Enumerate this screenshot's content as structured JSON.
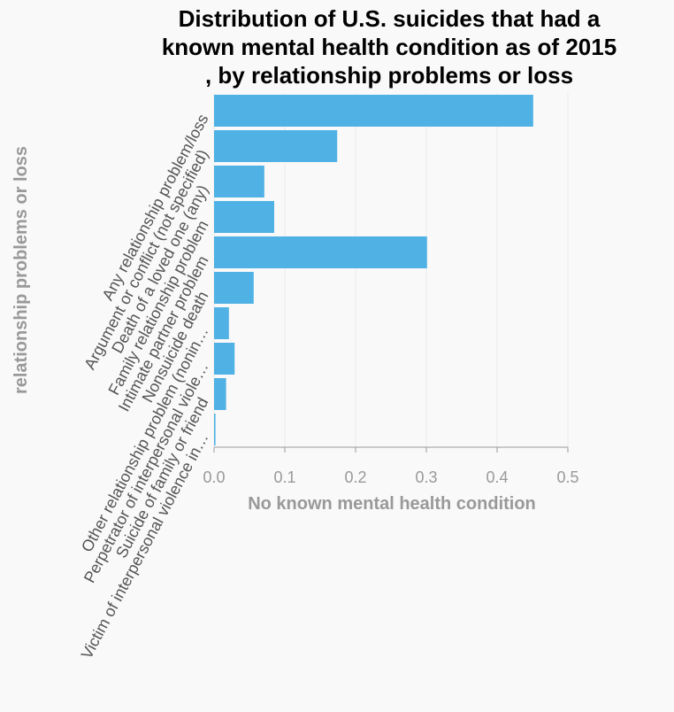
{
  "chart_data": {
    "type": "bar",
    "orientation": "horizontal",
    "title_lines": [
      "Distribution of U.S. suicides that had a",
      "known mental health condition as of 2015",
      ", by relationship problems or loss"
    ],
    "xlabel": "No known mental health condition",
    "ylabel": "relationship problems or loss",
    "xlim": [
      0,
      0.5
    ],
    "x_ticks": [
      "0.0",
      "0.1",
      "0.2",
      "0.3",
      "0.4",
      "0.5"
    ],
    "categories": [
      "Any relationship problem/loss",
      "Argument or conflict (not specified)",
      "Death of a loved one (any)",
      "Family relationship problem",
      "Intimate partner problem",
      "Nonsuicide death",
      "Other relationship problem (nonin…",
      "Perpetrator of interpersonal viole…",
      "Suicide of family or friend",
      "Victim of interpersonal violence in…"
    ],
    "values": [
      0.451,
      0.174,
      0.071,
      0.085,
      0.301,
      0.056,
      0.021,
      0.029,
      0.017,
      0.002
    ],
    "grid": true,
    "bar_color": "#4fb1e4"
  }
}
